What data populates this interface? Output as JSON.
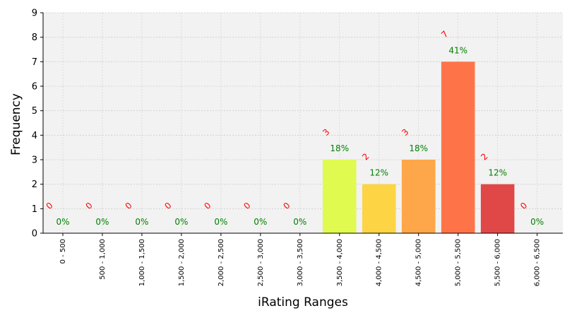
{
  "chart_data": {
    "type": "bar",
    "xlabel": "iRating Ranges",
    "ylabel": "Frequency",
    "ylim": [
      0,
      9
    ],
    "yticks": [
      0,
      1,
      2,
      3,
      4,
      5,
      6,
      7,
      8,
      9
    ],
    "grid": true,
    "categories": [
      "0 - 500",
      "500 - 1,000",
      "1,000 - 1,500",
      "1,500 - 2,000",
      "2,000 - 2,500",
      "2,500 - 3,000",
      "3,000 - 3,500",
      "3,500 - 4,000",
      "4,000 - 4,500",
      "4,500 - 5,000",
      "5,000 - 5,500",
      "5,500 - 6,000",
      "6,000 - 6,500"
    ],
    "values": [
      0,
      0,
      0,
      0,
      0,
      0,
      0,
      3,
      2,
      3,
      7,
      2,
      0
    ],
    "count_labels": [
      "0",
      "0",
      "0",
      "0",
      "0",
      "0",
      "0",
      "3",
      "2",
      "3",
      "7",
      "2",
      "0"
    ],
    "percent_labels": [
      "0%",
      "0%",
      "0%",
      "0%",
      "0%",
      "0%",
      "0%",
      "18%",
      "12%",
      "18%",
      "41%",
      "12%",
      "0%"
    ],
    "bar_colors": [
      "#6fbf40",
      "#6fbf40",
      "#6fbf40",
      "#6fbf40",
      "#6fbf40",
      "#6fbf40",
      "#6fbf40",
      "#e0fa50",
      "#fcd444",
      "#fea64a",
      "#fe7448",
      "#e04848",
      "#c43c3c"
    ],
    "colors": {
      "plot_background": "#f2f2f2",
      "grid": "#cccccc",
      "count_text": "#ff0000",
      "percent_text": "#008000"
    }
  }
}
